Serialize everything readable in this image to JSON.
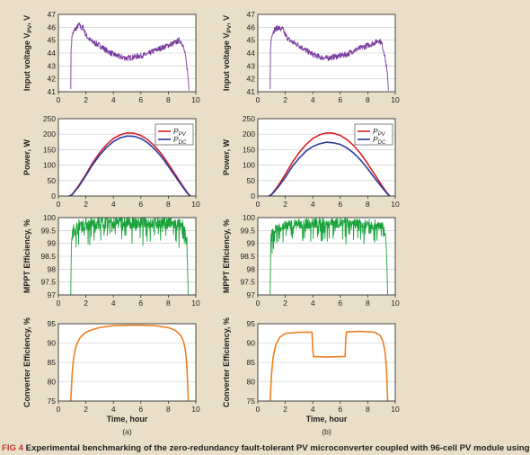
{
  "caption": {
    "label": "FIG 4",
    "text": "Experimental benchmarking of the zero-redundancy fault-tolerant PV microconverter coupled with 96-cell PV module using"
  },
  "colors": {
    "voltage": "#7a3b9e",
    "ppv": "#d61f26",
    "pdc": "#2b3a9c",
    "efficiency": "#1aa33b",
    "converter": "#f07f1e",
    "panel_bg": "#ffffff",
    "page_bg": "#e9dfc9"
  },
  "chart_data": [
    {
      "id": "a-voltage",
      "type": "line",
      "column": "a",
      "row": 0,
      "ylabel": "Input voltage V_PV, V",
      "ylim": [
        41,
        47
      ],
      "yticks": [
        41,
        42,
        43,
        44,
        45,
        46,
        47
      ],
      "xlim": [
        0,
        10
      ],
      "xticks": [
        0,
        2,
        4,
        6,
        8,
        10
      ],
      "series": [
        {
          "color_key": "voltage",
          "noise": 0.22,
          "x": [
            0.9,
            0.92,
            1.0,
            1.2,
            1.5,
            1.7,
            1.8,
            2.0,
            2.3,
            2.6,
            3.0,
            3.5,
            4.0,
            4.5,
            5.0,
            5.5,
            6.0,
            6.5,
            7.0,
            7.5,
            8.0,
            8.5,
            8.8,
            9.0,
            9.2,
            9.35,
            9.45,
            9.5
          ],
          "y": [
            41.2,
            44.2,
            45.4,
            45.8,
            46.2,
            45.9,
            46.0,
            45.4,
            45.0,
            44.8,
            44.6,
            44.2,
            43.9,
            43.7,
            43.6,
            43.7,
            43.8,
            43.9,
            44.2,
            44.4,
            44.6,
            44.8,
            45.0,
            44.8,
            44.0,
            43.0,
            42.0,
            41.1
          ]
        }
      ]
    },
    {
      "id": "b-voltage",
      "type": "line",
      "column": "b",
      "row": 0,
      "ylabel": "Input voltage V_PV, V",
      "ylim": [
        41,
        47
      ],
      "yticks": [
        41,
        42,
        43,
        44,
        45,
        46,
        47
      ],
      "xlim": [
        0,
        10
      ],
      "xticks": [
        0,
        2,
        4,
        6,
        8,
        10
      ],
      "series": [
        {
          "color_key": "voltage",
          "noise": 0.22,
          "x": [
            0.9,
            0.92,
            1.0,
            1.2,
            1.5,
            1.7,
            1.8,
            2.0,
            2.3,
            2.6,
            3.0,
            3.5,
            4.0,
            4.5,
            5.0,
            5.5,
            6.0,
            6.5,
            7.0,
            7.5,
            8.0,
            8.5,
            8.8,
            9.0,
            9.2,
            9.35,
            9.45,
            9.5
          ],
          "y": [
            41.2,
            44.2,
            45.4,
            45.8,
            46.0,
            45.8,
            45.9,
            45.4,
            45.0,
            44.8,
            44.6,
            44.2,
            43.9,
            43.7,
            43.6,
            43.7,
            43.8,
            43.9,
            44.2,
            44.4,
            44.6,
            44.8,
            45.0,
            44.8,
            44.0,
            43.0,
            42.0,
            41.1
          ]
        }
      ]
    },
    {
      "id": "a-power",
      "type": "line",
      "column": "a",
      "row": 1,
      "ylabel": "Power, W",
      "ylim": [
        0,
        250
      ],
      "yticks": [
        0,
        50,
        100,
        150,
        200,
        250
      ],
      "xlim": [
        0,
        10
      ],
      "xticks": [
        0,
        2,
        4,
        6,
        8,
        10
      ],
      "legend": {
        "placement": "top-right",
        "entries": [
          {
            "base": "P",
            "sub": "PV",
            "color_key": "ppv"
          },
          {
            "base": "P",
            "sub": "DC",
            "color_key": "pdc"
          }
        ]
      },
      "series": [
        {
          "name": "P_PV",
          "color_key": "ppv",
          "noise": 0,
          "x": [
            0.8,
            1.0,
            1.5,
            2.0,
            2.5,
            3.0,
            3.5,
            4.0,
            4.5,
            5.0,
            5.5,
            6.0,
            6.5,
            7.0,
            7.5,
            8.0,
            8.5,
            9.0,
            9.4,
            9.6
          ],
          "y": [
            0,
            5,
            35,
            70,
            108,
            140,
            166,
            186,
            198,
            204,
            203,
            196,
            182,
            162,
            136,
            104,
            70,
            36,
            10,
            0
          ]
        },
        {
          "name": "P_DC",
          "color_key": "pdc",
          "noise": 0,
          "x": [
            0.8,
            1.0,
            1.5,
            2.0,
            2.5,
            3.0,
            3.5,
            4.0,
            4.5,
            5.0,
            5.5,
            6.0,
            6.5,
            7.0,
            7.5,
            8.0,
            8.5,
            9.0,
            9.4,
            9.6
          ],
          "y": [
            0,
            4,
            32,
            66,
            102,
            132,
            157,
            176,
            188,
            194,
            193,
            186,
            172,
            152,
            127,
            96,
            64,
            32,
            8,
            0
          ]
        }
      ]
    },
    {
      "id": "b-power",
      "type": "line",
      "column": "b",
      "row": 1,
      "ylabel": "Power, W",
      "ylim": [
        0,
        250
      ],
      "yticks": [
        0,
        50,
        100,
        150,
        200,
        250
      ],
      "xlim": [
        0,
        10
      ],
      "xticks": [
        0,
        2,
        4,
        6,
        8,
        10
      ],
      "legend": {
        "placement": "top-right",
        "entries": [
          {
            "base": "P",
            "sub": "PV",
            "color_key": "ppv"
          },
          {
            "base": "P",
            "sub": "DC",
            "color_key": "pdc"
          }
        ]
      },
      "series": [
        {
          "name": "P_PV",
          "color_key": "ppv",
          "noise": 0,
          "x": [
            0.8,
            1.0,
            1.5,
            2.0,
            2.5,
            3.0,
            3.5,
            4.0,
            4.5,
            5.0,
            5.5,
            6.0,
            6.5,
            7.0,
            7.5,
            8.0,
            8.5,
            9.0,
            9.4,
            9.6
          ],
          "y": [
            0,
            5,
            35,
            70,
            108,
            140,
            166,
            186,
            198,
            204,
            203,
            196,
            182,
            162,
            136,
            104,
            70,
            36,
            10,
            0
          ]
        },
        {
          "name": "P_DC",
          "color_key": "pdc",
          "noise": 0,
          "x": [
            0.8,
            1.0,
            1.5,
            2.0,
            2.5,
            3.0,
            3.5,
            4.0,
            4.5,
            5.0,
            5.5,
            6.0,
            6.5,
            7.0,
            7.5,
            8.0,
            8.5,
            9.0,
            9.4,
            9.6
          ],
          "y": [
            0,
            4,
            30,
            60,
            95,
            122,
            145,
            160,
            169,
            174,
            172,
            167,
            155,
            138,
            115,
            88,
            58,
            30,
            8,
            0
          ]
        }
      ]
    },
    {
      "id": "a-mppt",
      "type": "line",
      "column": "a",
      "row": 2,
      "ylabel": "MPPT Efficiency, %",
      "ylim": [
        97,
        100
      ],
      "yticks": [
        97,
        97.5,
        98,
        98.5,
        99,
        99.5,
        100
      ],
      "xlim": [
        0,
        10
      ],
      "xticks": [
        0,
        2,
        4,
        6,
        8,
        10
      ],
      "series": [
        {
          "color_key": "efficiency",
          "noise": 0.25,
          "dips": true,
          "x": [
            0.9,
            0.95,
            1.1,
            1.5,
            2.0,
            3.0,
            4.0,
            5.0,
            6.0,
            7.0,
            8.0,
            9.0,
            9.2,
            9.35,
            9.45
          ],
          "y": [
            97.0,
            99.2,
            99.5,
            99.7,
            99.75,
            99.8,
            99.82,
            99.82,
            99.82,
            99.8,
            99.8,
            99.7,
            99.5,
            99.0,
            97.0
          ]
        }
      ]
    },
    {
      "id": "b-mppt",
      "type": "line",
      "column": "b",
      "row": 2,
      "ylabel": "MPPT Efficiency, %",
      "ylim": [
        97,
        100
      ],
      "yticks": [
        97,
        97.5,
        98,
        98.5,
        99,
        99.5,
        100
      ],
      "xlim": [
        0,
        10
      ],
      "xticks": [
        0,
        2,
        4,
        6,
        8,
        10
      ],
      "series": [
        {
          "color_key": "efficiency",
          "noise": 0.2,
          "dips": true,
          "x": [
            0.9,
            0.95,
            1.1,
            1.5,
            2.0,
            3.0,
            4.0,
            5.0,
            6.0,
            7.0,
            8.0,
            9.0,
            9.2,
            9.35,
            9.45
          ],
          "y": [
            97.0,
            99.2,
            99.5,
            99.6,
            99.7,
            99.75,
            99.78,
            99.8,
            99.8,
            99.78,
            99.75,
            99.7,
            99.5,
            99.0,
            97.0
          ]
        }
      ]
    },
    {
      "id": "a-converter",
      "type": "line",
      "column": "a",
      "row": 3,
      "ylabel": "Converter Efficiency, %",
      "xlabel": "Time, hour",
      "panel_label": "(a)",
      "ylim": [
        75,
        95
      ],
      "yticks": [
        75,
        80,
        85,
        90,
        95
      ],
      "xlim": [
        0,
        10
      ],
      "xticks": [
        0,
        2,
        4,
        6,
        8,
        10
      ],
      "series": [
        {
          "color_key": "converter",
          "noise": 0,
          "x": [
            0.9,
            1.0,
            1.1,
            1.3,
            1.6,
            2.0,
            2.5,
            3.0,
            4.0,
            5.0,
            6.0,
            7.0,
            8.0,
            8.5,
            8.9,
            9.1,
            9.25,
            9.35,
            9.4,
            9.45
          ],
          "y": [
            75,
            82,
            86,
            89.5,
            91.5,
            92.8,
            93.5,
            94.0,
            94.5,
            94.6,
            94.6,
            94.5,
            94.0,
            93.3,
            92.0,
            90.5,
            88.0,
            84.0,
            80.0,
            75.0
          ]
        }
      ]
    },
    {
      "id": "b-converter",
      "type": "line",
      "column": "b",
      "row": 3,
      "ylabel": "Converter Efficiency, %",
      "xlabel": "Time, hour",
      "panel_label": "(b)",
      "ylim": [
        75,
        95
      ],
      "yticks": [
        75,
        80,
        85,
        90,
        95
      ],
      "xlim": [
        0,
        10
      ],
      "xticks": [
        0,
        2,
        4,
        6,
        8,
        10
      ],
      "series": [
        {
          "color_key": "converter",
          "noise": 0,
          "x": [
            0.9,
            1.0,
            1.1,
            1.3,
            1.6,
            2.0,
            3.0,
            3.98,
            3.99,
            4.02,
            5.0,
            6.38,
            6.39,
            6.42,
            7.5,
            8.5,
            8.9,
            9.1,
            9.25,
            9.35,
            9.4,
            9.45
          ],
          "y": [
            75,
            82,
            86,
            89.5,
            91.5,
            92.5,
            92.8,
            92.8,
            89.0,
            86.5,
            86.4,
            86.5,
            90.0,
            92.9,
            93.0,
            92.8,
            92.0,
            90.5,
            88.0,
            84.0,
            80.0,
            75.0
          ]
        }
      ]
    }
  ]
}
